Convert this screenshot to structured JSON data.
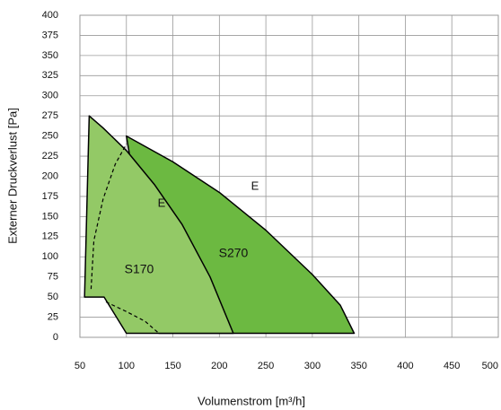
{
  "chart_data": {
    "type": "area",
    "xlabel": "Volumenstrom [m³/h]",
    "ylabel": "Externer Druckverlust [Pa]",
    "xlim": [
      50,
      500
    ],
    "ylim": [
      0,
      400
    ],
    "xticks": [
      50,
      100,
      150,
      200,
      250,
      300,
      350,
      400,
      450,
      500
    ],
    "yticks": [
      0,
      25,
      50,
      75,
      100,
      125,
      150,
      175,
      200,
      225,
      250,
      275,
      300,
      325,
      350,
      375,
      400
    ],
    "grid": true,
    "series": [
      {
        "name": "S270",
        "color": "#6cb941",
        "x": [
          100,
          150,
          200,
          250,
          300,
          330,
          345,
          135
        ],
        "values": [
          250,
          218,
          180,
          133,
          78,
          40,
          5,
          5
        ]
      },
      {
        "name": "S170",
        "color": "#93c966",
        "x": [
          60,
          75,
          100,
          130,
          160,
          190,
          215,
          100,
          76,
          55
        ],
        "values": [
          275,
          260,
          232,
          190,
          140,
          75,
          5,
          5,
          50,
          50
        ]
      }
    ],
    "curves": [
      {
        "x": [
          62,
          65,
          75,
          88,
          100
        ],
        "values": [
          60,
          120,
          172,
          215,
          240
        ],
        "dashed": true
      },
      {
        "x": [
          78,
          100,
          120,
          135
        ],
        "values": [
          44,
          32,
          20,
          5
        ],
        "dashed": true
      }
    ],
    "annotations": [
      "E",
      "E"
    ]
  }
}
